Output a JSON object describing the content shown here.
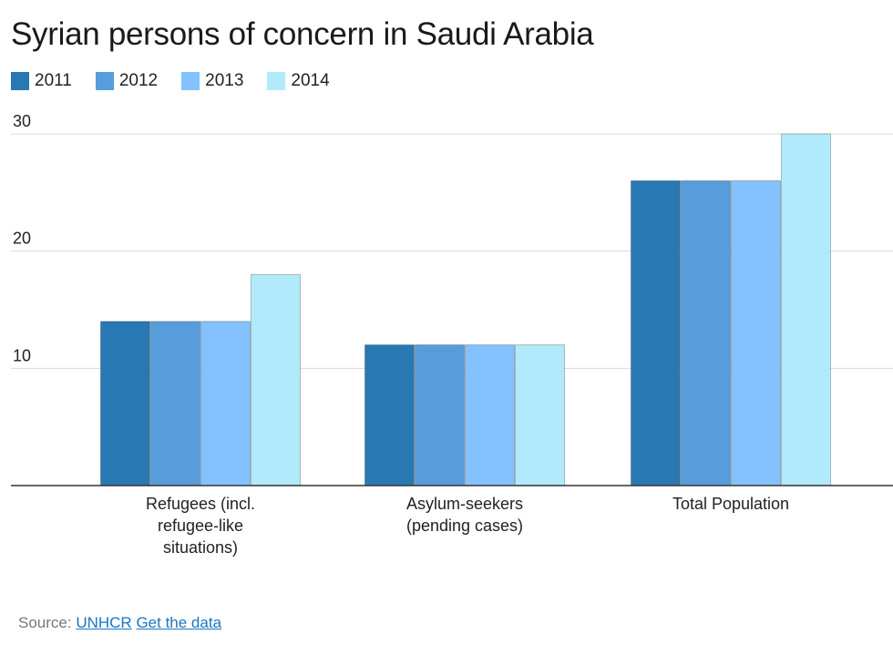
{
  "title": "Syrian persons of concern in Saudi Arabia",
  "legend": [
    {
      "label": "2011",
      "color": "#2878b4"
    },
    {
      "label": "2012",
      "color": "#579ddb"
    },
    {
      "label": "2013",
      "color": "#83c2ff"
    },
    {
      "label": "2014",
      "color": "#b1ebfb"
    }
  ],
  "chart_data": {
    "type": "bar",
    "title": "Syrian persons of concern in Saudi Arabia",
    "categories": [
      [
        "Refugees (incl.",
        "refugee-like",
        "situations)"
      ],
      [
        "Asylum-seekers",
        "(pending cases)"
      ],
      [
        "Total Population"
      ]
    ],
    "series": [
      {
        "name": "2011",
        "color": "#2878b4",
        "values": [
          14,
          12,
          26
        ]
      },
      {
        "name": "2012",
        "color": "#579ddb",
        "values": [
          14,
          12,
          26
        ]
      },
      {
        "name": "2013",
        "color": "#83c2ff",
        "values": [
          14,
          12,
          26
        ]
      },
      {
        "name": "2014",
        "color": "#b1ebfb",
        "values": [
          18,
          12,
          30
        ]
      }
    ],
    "ylim": [
      0,
      30
    ],
    "yticks": [
      "10",
      "20",
      "30"
    ],
    "xlabel": "",
    "ylabel": "",
    "grid": true,
    "legend_position": "top-left"
  },
  "source": {
    "prefix": "Source:",
    "link1": "UNHCR",
    "link2": "Get the data"
  }
}
